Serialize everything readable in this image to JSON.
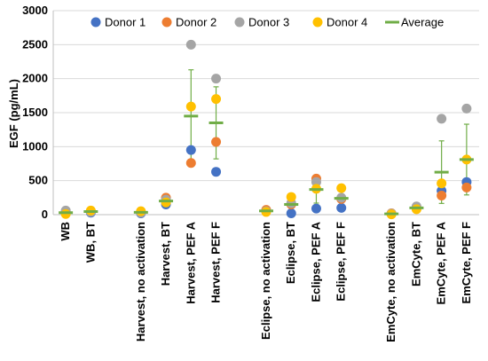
{
  "chart_data": {
    "type": "scatter",
    "ylabel": "EGF (pg/mL)",
    "xlabel": "",
    "title": "",
    "ylim": [
      0,
      3000
    ],
    "yticks": [
      0,
      500,
      1000,
      1500,
      2000,
      2500,
      3000
    ],
    "grid": "horizontal",
    "legend_position": "top",
    "categories": [
      "WB",
      "WB, BT",
      "",
      "Harvest, no activation",
      "Harvest, BT",
      "Harvest, PEF A",
      "Harvest, PEF F",
      "",
      "Eclipse, no activation",
      "Eclipse, BT",
      "Eclipse, PEF A",
      "Eclipse, PEF F",
      "",
      "EmCyte, no activation",
      "EmCyte, BT",
      "EmCyte, PEF A",
      "EmCyte, PEF F"
    ],
    "series": [
      {
        "name": "Donor 1",
        "color": "#4472C4",
        "values": [
          20,
          30,
          null,
          20,
          150,
          950,
          630,
          null,
          60,
          20,
          90,
          100,
          null,
          10,
          90,
          350,
          480
        ]
      },
      {
        "name": "Donor 2",
        "color": "#ED7D31",
        "values": [
          40,
          50,
          null,
          40,
          250,
          760,
          1070,
          null,
          70,
          150,
          530,
          230,
          null,
          20,
          100,
          280,
          400
        ]
      },
      {
        "name": "Donor 3",
        "color": "#A5A5A5",
        "values": [
          60,
          40,
          null,
          30,
          220,
          2500,
          2000,
          null,
          50,
          170,
          480,
          250,
          null,
          15,
          120,
          1410,
          1560
        ]
      },
      {
        "name": "Donor 4",
        "color": "#FFC000",
        "values": [
          10,
          60,
          null,
          50,
          180,
          1590,
          1700,
          null,
          40,
          260,
          380,
          390,
          null,
          5,
          80,
          460,
          810
        ]
      }
    ],
    "average": {
      "name": "Average",
      "color": "#70AD47",
      "values": [
        30,
        45,
        null,
        35,
        200,
        1450,
        1350,
        null,
        55,
        150,
        370,
        240,
        null,
        12,
        100,
        625,
        810
      ],
      "error": [
        25,
        15,
        null,
        15,
        40,
        680,
        530,
        null,
        15,
        90,
        200,
        120,
        null,
        8,
        20,
        460,
        520
      ]
    }
  }
}
